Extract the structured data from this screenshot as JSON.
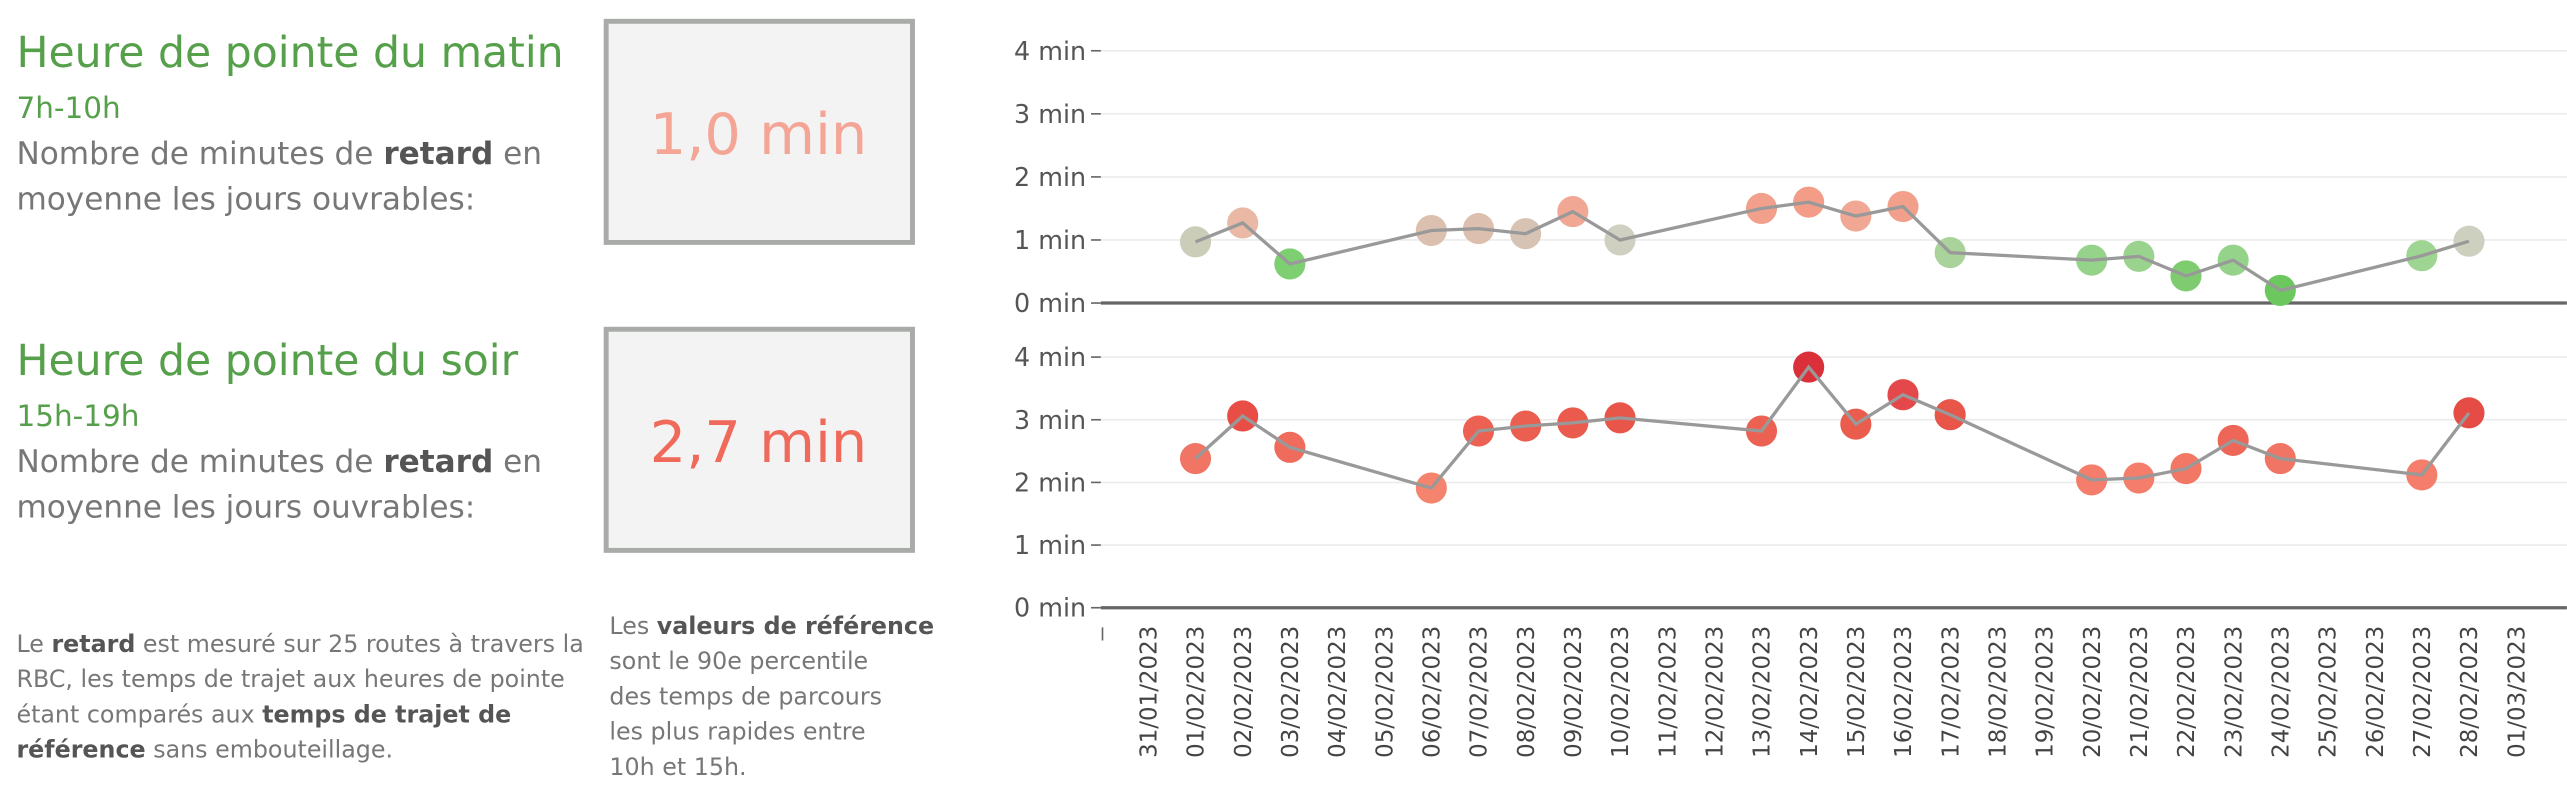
{
  "panels": [
    {
      "title": "Heure de pointe du matin",
      "subtitle": "7h-10h",
      "lines": [
        [
          {
            "text": "Nombre de minutes de ",
            "bold": false
          },
          {
            "text": "retard",
            "bold": true
          },
          {
            "text": " en",
            "bold": false
          }
        ],
        [
          {
            "text": "moyenne les jours ouvrables:",
            "bold": false
          }
        ]
      ],
      "kpi": "1,0 min",
      "kpi_color": "#f4a595"
    },
    {
      "title": "Heure de pointe du soir",
      "subtitle": "15h-19h",
      "lines": [
        [
          {
            "text": "Nombre de minutes de ",
            "bold": false
          },
          {
            "text": "retard",
            "bold": true
          },
          {
            "text": " en",
            "bold": false
          }
        ],
        [
          {
            "text": "moyenne les jours ouvrables:",
            "bold": false
          }
        ]
      ],
      "kpi": "2,7 min",
      "kpi_color": "#ef6a5a"
    }
  ],
  "footnotes": [
    [
      [
        {
          "text": "Le ",
          "bold": false
        },
        {
          "text": "retard",
          "bold": true
        },
        {
          "text": " est mesuré sur 25 routes à travers la",
          "bold": false
        }
      ],
      [
        {
          "text": "RBC, les temps de trajet aux heures de pointe",
          "bold": false
        }
      ],
      [
        {
          "text": "étant comparés aux ",
          "bold": false
        },
        {
          "text": "temps de trajet de",
          "bold": true
        }
      ],
      [
        {
          "text": "référence",
          "bold": true
        },
        {
          "text": " sans embouteillage.",
          "bold": false
        }
      ]
    ],
    [
      [
        {
          "text": "Les ",
          "bold": false
        },
        {
          "text": "valeurs de référence",
          "bold": true
        }
      ],
      [
        {
          "text": "sont le 90e percentile",
          "bold": false
        }
      ],
      [
        {
          "text": "des temps de parcours",
          "bold": false
        }
      ],
      [
        {
          "text": "les plus rapides entre",
          "bold": false
        }
      ],
      [
        {
          "text": "10h et 15h.",
          "bold": false
        }
      ]
    ]
  ],
  "chart_data": [
    {
      "type": "line",
      "line_color": "#999999",
      "ylim": [
        0,
        4
      ],
      "yticks": [
        {
          "value": 0,
          "label": "0 min"
        },
        {
          "value": 1,
          "label": "1 min"
        },
        {
          "value": 2,
          "label": "2 min"
        },
        {
          "value": 3,
          "label": "3 min"
        },
        {
          "value": 4,
          "label": "4 min"
        }
      ],
      "x": [
        "01/02/2023",
        "02/02/2023",
        "03/02/2023",
        "06/02/2023",
        "07/02/2023",
        "08/02/2023",
        "09/02/2023",
        "10/02/2023",
        "13/02/2023",
        "14/02/2023",
        "15/02/2023",
        "16/02/2023",
        "17/02/2023",
        "20/02/2023",
        "21/02/2023",
        "22/02/2023",
        "23/02/2023",
        "24/02/2023",
        "27/02/2023",
        "28/02/2023"
      ],
      "values": [
        0.97,
        1.27,
        0.62,
        1.15,
        1.18,
        1.1,
        1.45,
        1.0,
        1.5,
        1.6,
        1.38,
        1.53,
        0.8,
        0.68,
        0.74,
        0.43,
        0.68,
        0.2,
        0.75,
        0.98
      ],
      "colors": [
        "#cbcdb9",
        "#e9b9a5",
        "#7dcf72",
        "#dbc0b0",
        "#dcbfae",
        "#d6c3b3",
        "#f0a894",
        "#d0d0c2",
        "#f2a08c",
        "#f39c88",
        "#f0a894",
        "#f2a08c",
        "#a9d39a",
        "#96d38a",
        "#9ad38e",
        "#7fcc70",
        "#96d38a",
        "#6cc75e",
        "#9ed592",
        "#cdd0bf"
      ]
    },
    {
      "type": "line",
      "line_color": "#999999",
      "ylim": [
        0,
        4
      ],
      "yticks": [
        {
          "value": 0,
          "label": "0 min"
        },
        {
          "value": 1,
          "label": "1 min"
        },
        {
          "value": 2,
          "label": "2 min"
        },
        {
          "value": 3,
          "label": "3 min"
        },
        {
          "value": 4,
          "label": "4 min"
        }
      ],
      "xticks": [
        "31/01/2023",
        "01/02/2023",
        "02/02/2023",
        "03/02/2023",
        "04/02/2023",
        "05/02/2023",
        "06/02/2023",
        "07/02/2023",
        "08/02/2023",
        "09/02/2023",
        "10/02/2023",
        "11/02/2023",
        "12/02/2023",
        "13/02/2023",
        "14/02/2023",
        "15/02/2023",
        "16/02/2023",
        "17/02/2023",
        "18/02/2023",
        "19/02/2023",
        "20/02/2023",
        "21/02/2023",
        "22/02/2023",
        "23/02/2023",
        "24/02/2023",
        "25/02/2023",
        "26/02/2023",
        "27/02/2023",
        "28/02/2023",
        "01/03/2023"
      ],
      "x": [
        "01/02/2023",
        "02/02/2023",
        "03/02/2023",
        "06/02/2023",
        "07/02/2023",
        "08/02/2023",
        "09/02/2023",
        "10/02/2023",
        "13/02/2023",
        "14/02/2023",
        "15/02/2023",
        "16/02/2023",
        "17/02/2023",
        "20/02/2023",
        "21/02/2023",
        "22/02/2023",
        "23/02/2023",
        "24/02/2023",
        "27/02/2023",
        "28/02/2023"
      ],
      "values": [
        2.38,
        3.06,
        2.56,
        1.91,
        2.82,
        2.9,
        2.95,
        3.03,
        2.82,
        3.84,
        2.93,
        3.4,
        3.08,
        2.04,
        2.07,
        2.22,
        2.67,
        2.38,
        2.12,
        3.11
      ],
      "colors": [
        "#f07565",
        "#e84e46",
        "#ef6b5c",
        "#f5846f",
        "#ec6152",
        "#eb5f50",
        "#ea5b4d",
        "#e85549",
        "#ec6152",
        "#d9303a",
        "#ea5d4e",
        "#e5484a",
        "#e85549",
        "#f47e6b",
        "#f47e6b",
        "#f27865",
        "#ee6657",
        "#f07565",
        "#f47e6b",
        "#e54c45"
      ]
    }
  ]
}
